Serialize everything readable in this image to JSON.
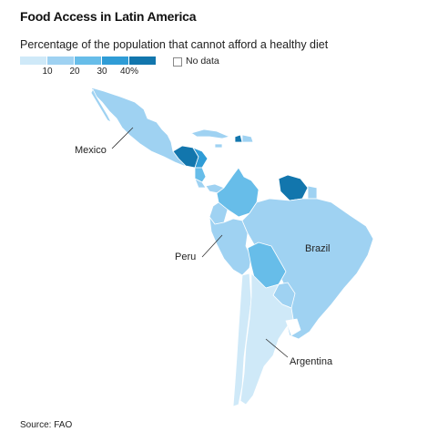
{
  "title": "Food Access in Latin America",
  "subtitle": "Percentage of the population that cannot afford a healthy diet",
  "legend": {
    "ticks": [
      "10",
      "20",
      "30",
      "40%"
    ],
    "no_data_label": "No data",
    "colors": [
      "#cfe9f8",
      "#9fd2f2",
      "#67bde9",
      "#2f9cd6",
      "#1276ad"
    ],
    "no_data_color": "#ffffff"
  },
  "labels": {
    "mexico": "Mexico",
    "peru": "Peru",
    "brazil": "Brazil",
    "argentina": "Argentina"
  },
  "source": "Source: FAO",
  "colors": {
    "land_low": "#cfe9f8",
    "land_mid": "#9fd2f2",
    "land_high": "#67bde9",
    "land_very_high": "#2f9cd6",
    "land_top": "#1276ad",
    "outline": "#ffffff"
  }
}
